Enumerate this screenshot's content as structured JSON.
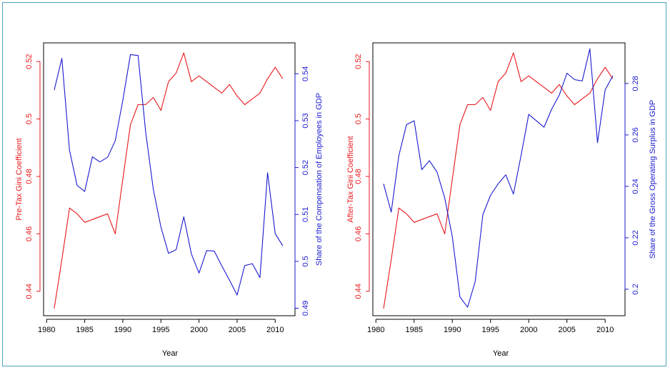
{
  "colors": {
    "left_axis": "#e8181c",
    "right_axis": "#1a1ad0",
    "axis": "#000000",
    "frame": "#4aa3b8"
  },
  "chart_data": [
    {
      "type": "line",
      "xlabel": "Year",
      "ylabel_left": "Pre-Tax Gini Coefficient",
      "ylabel_right": "Share of the Compensation of Employees in GDP",
      "xlim": [
        1979.6,
        2012.6
      ],
      "xticks": [
        1980,
        1985,
        1990,
        1995,
        2000,
        2005,
        2010
      ],
      "ylim_left": [
        0.4315,
        0.5265
      ],
      "yticks_left": [
        "0.44",
        "0.46",
        "0.48",
        "0.5",
        "0.52"
      ],
      "ylim_right": [
        0.4884,
        0.5466
      ],
      "yticks_right": [
        "0.49",
        "0.5",
        "0.51",
        "0.52",
        "0.53",
        "0.54"
      ],
      "grid": false,
      "x": [
        1981,
        1982,
        1983,
        1984,
        1985,
        1986,
        1987,
        1988,
        1989,
        1990,
        1991,
        1992,
        1993,
        1994,
        1995,
        1996,
        1997,
        1998,
        1999,
        2000,
        2001,
        2002,
        2003,
        2004,
        2005,
        2006,
        2007,
        2008,
        2009,
        2010,
        2011
      ],
      "series": [
        {
          "axis": "left",
          "values": [
            0.434,
            0.451,
            0.469,
            0.467,
            0.464,
            0.465,
            0.466,
            0.467,
            0.46,
            0.479,
            0.498,
            0.505,
            0.505,
            0.5075,
            0.503,
            0.513,
            0.516,
            0.523,
            0.513,
            0.515,
            0.513,
            0.511,
            0.509,
            0.512,
            0.508,
            0.505,
            0.507,
            0.509,
            0.514,
            0.518,
            0.514
          ]
        },
        {
          "axis": "right",
          "values": [
            0.5365,
            0.5433,
            0.5237,
            0.5162,
            0.5149,
            0.5223,
            0.5212,
            0.5222,
            0.5257,
            0.5343,
            0.5441,
            0.5439,
            0.5276,
            0.5154,
            0.5073,
            0.5017,
            0.5025,
            0.5095,
            0.5016,
            0.4975,
            0.5023,
            0.5022,
            0.499,
            0.496,
            0.4928,
            0.4991,
            0.4995,
            0.4965,
            0.5189,
            0.5059,
            0.5033
          ]
        }
      ]
    },
    {
      "type": "line",
      "xlabel": "Year",
      "ylabel_left": "After-Tax Gini Coefficient",
      "ylabel_right": "Share of the Gross Operating Surplus in GDP",
      "xlim": [
        1979.6,
        2012.6
      ],
      "xticks": [
        1980,
        1985,
        1990,
        1995,
        2000,
        2005,
        2010
      ],
      "ylim_left": [
        0.4315,
        0.5265
      ],
      "yticks_left": [
        "0.44",
        "0.46",
        "0.48",
        "0.5",
        "0.52"
      ],
      "ylim_right": [
        0.1897,
        0.2958
      ],
      "yticks_right": [
        "0.2",
        "0.22",
        "0.24",
        "0.26",
        "0.28"
      ],
      "grid": false,
      "x": [
        1981,
        1982,
        1983,
        1984,
        1985,
        1986,
        1987,
        1988,
        1989,
        1990,
        1991,
        1992,
        1993,
        1994,
        1995,
        1996,
        1997,
        1998,
        1999,
        2000,
        2001,
        2002,
        2003,
        2004,
        2005,
        2006,
        2007,
        2008,
        2009,
        2010,
        2011
      ],
      "series": [
        {
          "axis": "left",
          "values": [
            0.434,
            0.451,
            0.469,
            0.467,
            0.464,
            0.465,
            0.466,
            0.467,
            0.46,
            0.479,
            0.498,
            0.505,
            0.505,
            0.5075,
            0.503,
            0.513,
            0.516,
            0.523,
            0.513,
            0.515,
            0.513,
            0.511,
            0.509,
            0.512,
            0.508,
            0.505,
            0.507,
            0.509,
            0.514,
            0.518,
            0.514
          ]
        },
        {
          "axis": "right",
          "values": [
            0.241,
            0.23,
            0.252,
            0.264,
            0.2655,
            0.2465,
            0.25,
            0.2455,
            0.2355,
            0.2205,
            0.197,
            0.193,
            0.203,
            0.229,
            0.2365,
            0.241,
            0.2445,
            0.237,
            0.252,
            0.268,
            0.2655,
            0.263,
            0.27,
            0.2755,
            0.284,
            0.2815,
            0.281,
            0.2935,
            0.257,
            0.2775,
            0.283
          ]
        }
      ]
    }
  ]
}
